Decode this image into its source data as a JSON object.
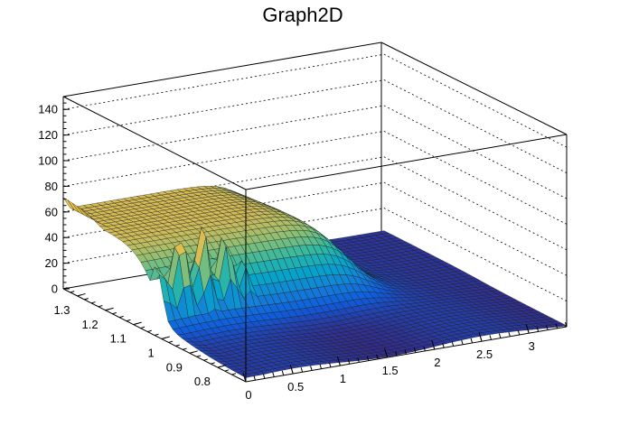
{
  "chart_data": {
    "type": "surface",
    "title": "Graph2D",
    "xlabel": "",
    "ylabel": "",
    "zlabel": "",
    "xlim": [
      0,
      3.4
    ],
    "ylim": [
      0.7,
      1.35
    ],
    "zlim": [
      0,
      150
    ],
    "x_ticks": [
      "0",
      "0.5",
      "1",
      "1.5",
      "2",
      "2.5",
      "3"
    ],
    "y_ticks": [
      "0.8",
      "0.9",
      "1",
      "1.1",
      "1.2",
      "1.3"
    ],
    "z_ticks": [
      "0",
      "20",
      "40",
      "60",
      "80",
      "100",
      "120",
      "140"
    ],
    "grid": true,
    "colormap": [
      "#352a87",
      "#0f5cdd",
      "#1481d6",
      "#06a4ca",
      "#2eb7a4",
      "#87bf77",
      "#d1bb59",
      "#fec832",
      "#f9fb0e"
    ],
    "surface_features": {
      "back_plateau_height": 60,
      "left_ridge_peak": 80,
      "spikes_x_range": [
        0.0,
        0.9
      ],
      "spike_peak_heights": [
        52,
        68,
        75,
        82,
        70,
        80,
        62,
        72,
        66,
        58
      ],
      "plateau_drop_x": 2.1
    }
  }
}
